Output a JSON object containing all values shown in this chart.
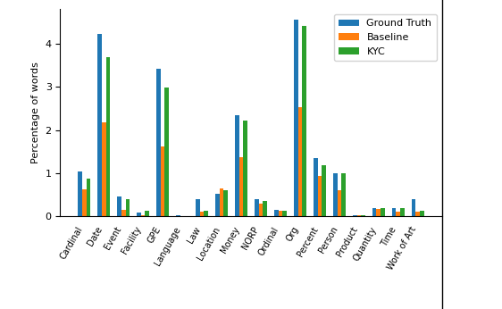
{
  "categories": [
    "Cardinal",
    "Date",
    "Event",
    "Facility",
    "GPE",
    "Language",
    "Law",
    "Location",
    "Money",
    "NORP",
    "Ordinal",
    "Org",
    "Percent",
    "Person",
    "Product",
    "Quantity",
    "Time",
    "Work of Art"
  ],
  "ground_truth": [
    1.03,
    4.22,
    0.45,
    0.08,
    3.42,
    0.02,
    0.4,
    0.52,
    2.35,
    0.4,
    0.15,
    4.55,
    1.35,
    1.0,
    0.02,
    0.2,
    0.2,
    0.4
  ],
  "baseline": [
    0.62,
    2.18,
    0.15,
    0.02,
    1.62,
    0.0,
    0.1,
    0.65,
    1.38,
    0.3,
    0.13,
    2.52,
    0.93,
    0.6,
    0.02,
    0.18,
    0.1,
    0.1
  ],
  "kyc": [
    0.88,
    3.68,
    0.4,
    0.12,
    2.98,
    0.0,
    0.12,
    0.6,
    2.22,
    0.35,
    0.12,
    4.42,
    1.18,
    1.0,
    0.02,
    0.2,
    0.2,
    0.13
  ],
  "bar_colors": [
    "#1f77b4",
    "#ff7f0e",
    "#2ca02c"
  ],
  "legend_labels": [
    "Ground Truth",
    "Baseline",
    "KYC"
  ],
  "ylabel": "Percentage of words",
  "ylim": [
    0,
    4.8
  ],
  "yticks": [
    0,
    1,
    2,
    3,
    4
  ],
  "bar_width": 0.22,
  "figsize": [
    5.62,
    3.46
  ],
  "dpi": 100,
  "ylabel_fontsize": 8,
  "xtick_fontsize": 7,
  "ytick_fontsize": 8,
  "legend_fontsize": 8
}
